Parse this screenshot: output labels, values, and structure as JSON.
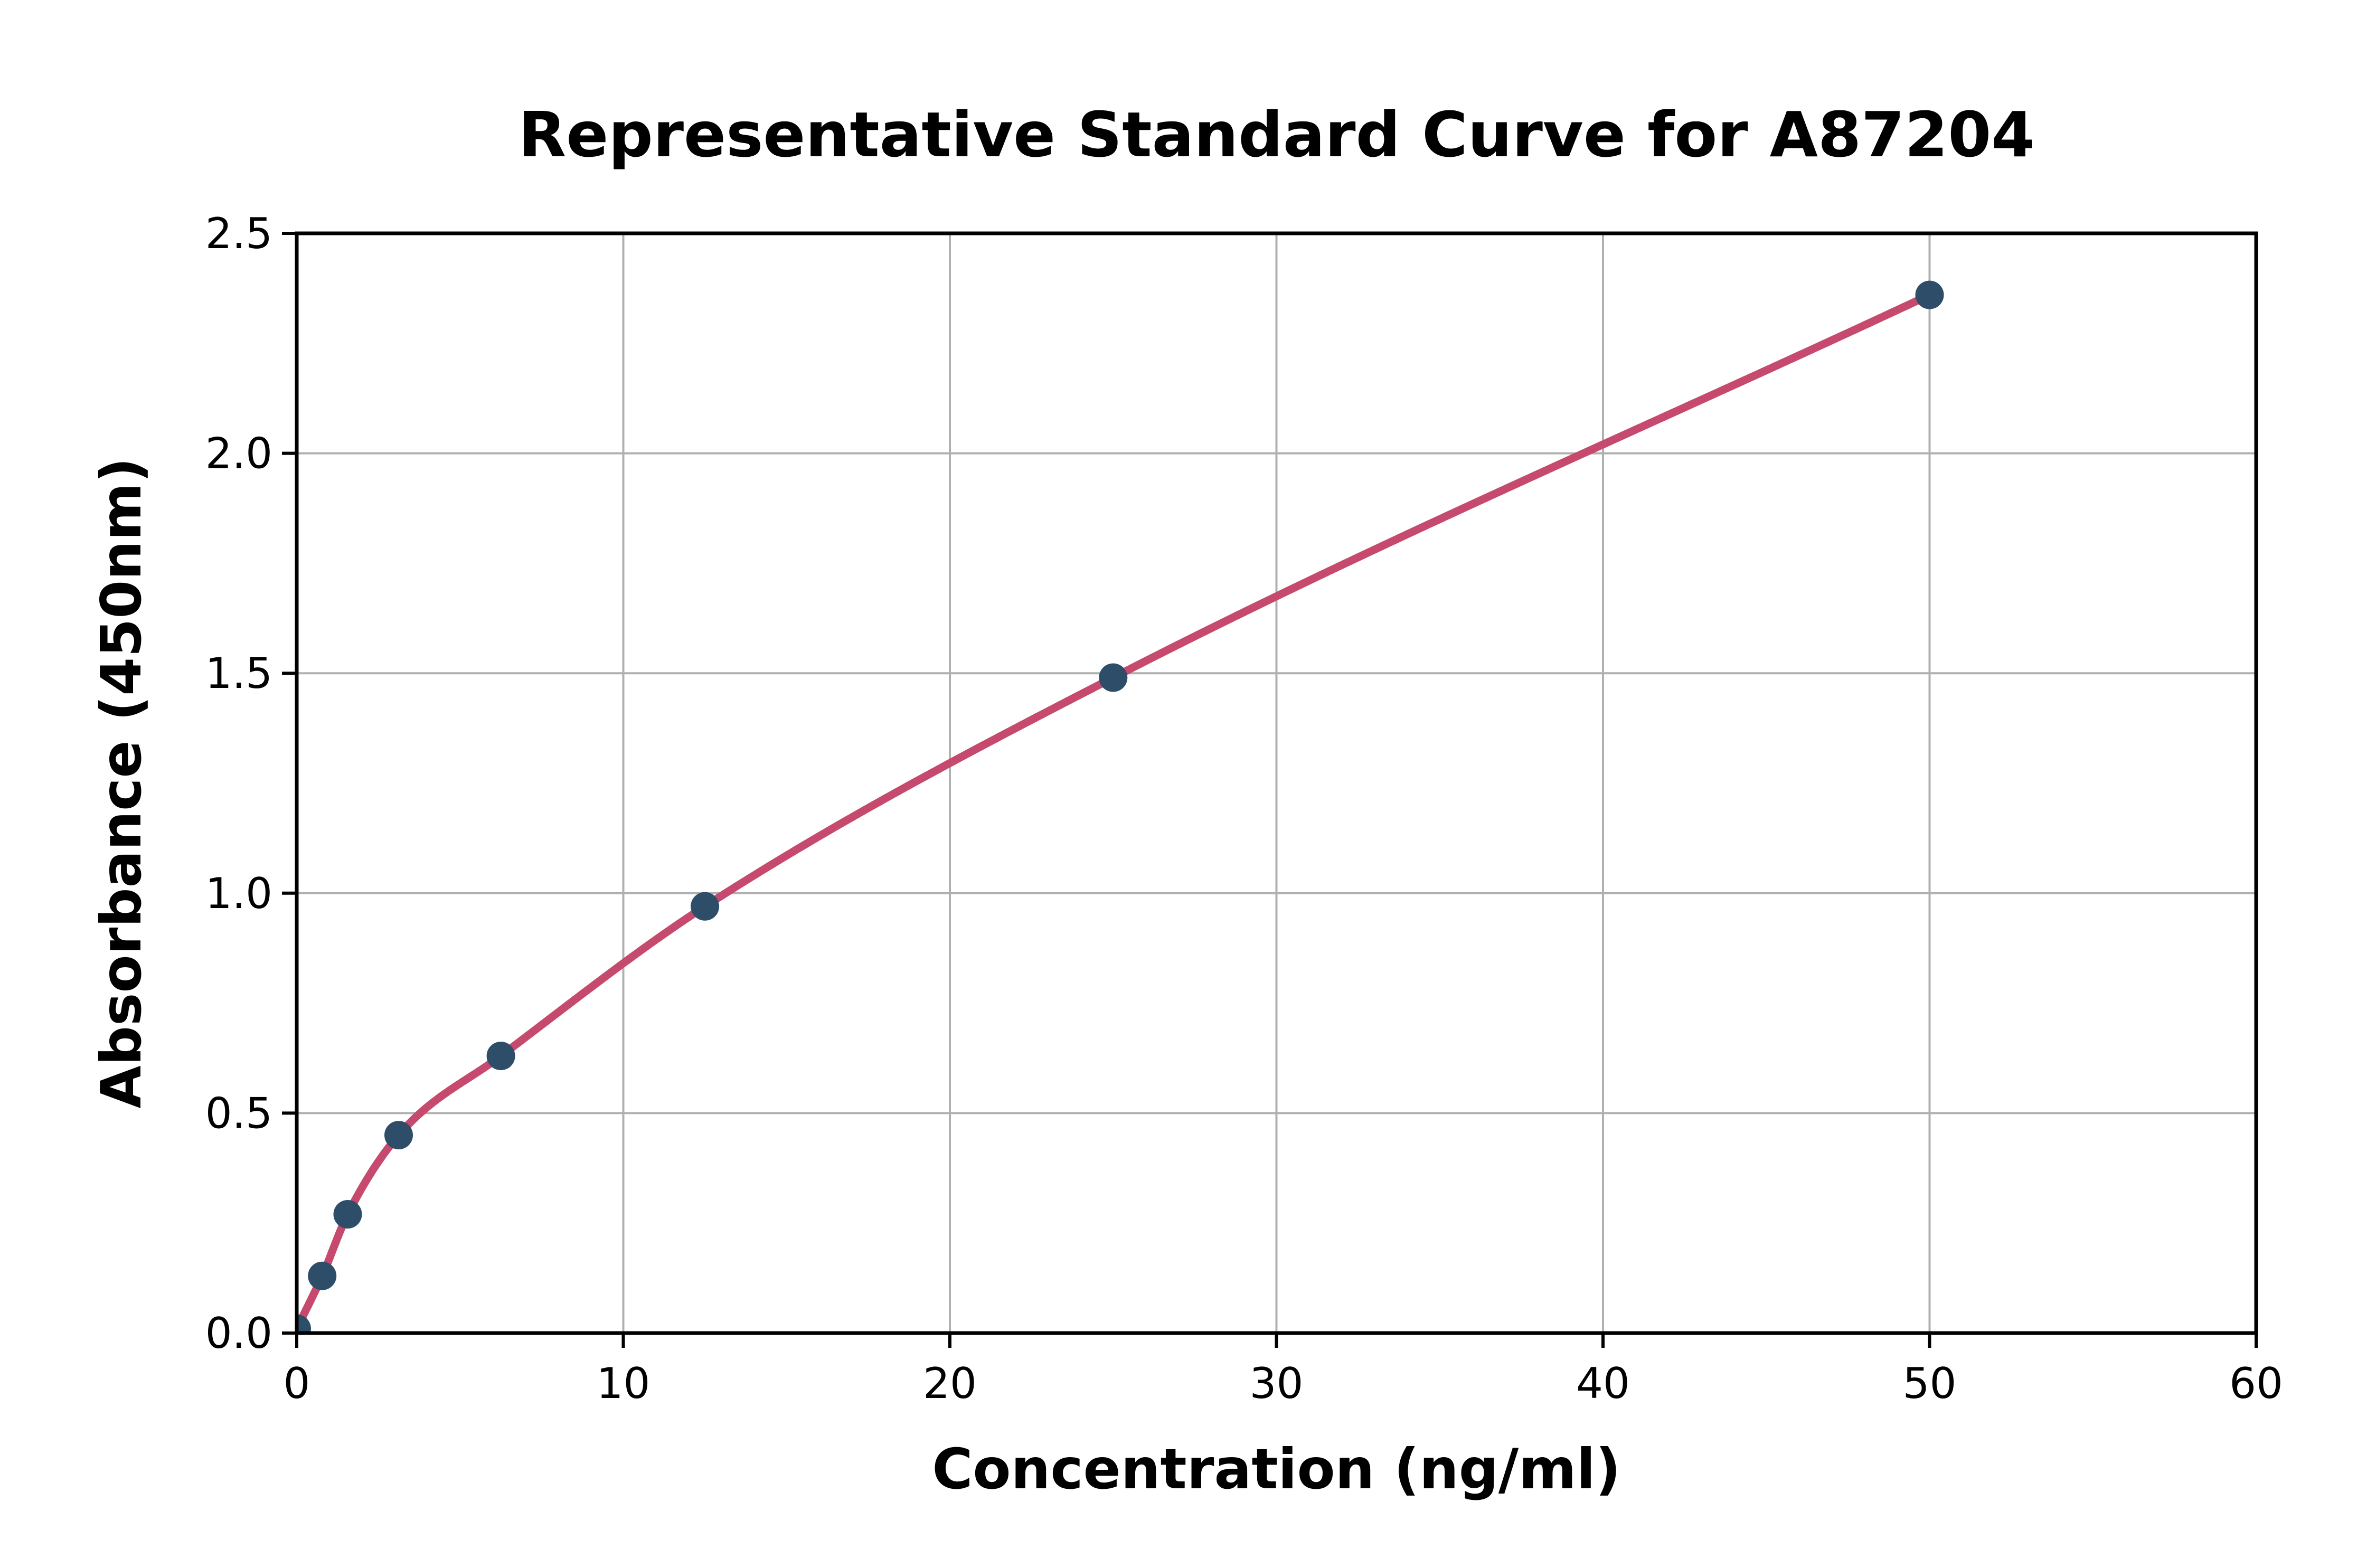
{
  "figure": {
    "background": "#ffffff"
  },
  "chart_data": {
    "type": "scatter",
    "title": "Representative Standard Curve for A87204",
    "xlabel": "Concentration (ng/ml)",
    "ylabel": "Absorbance (450nm)",
    "xlim": [
      0,
      60
    ],
    "ylim": [
      0,
      2.5
    ],
    "grid": true,
    "legend": "none",
    "x_ticks": [
      0,
      10,
      20,
      30,
      40,
      50,
      60
    ],
    "x_tick_labels": [
      "0",
      "10",
      "20",
      "30",
      "40",
      "50",
      "60"
    ],
    "y_ticks": [
      0,
      0.5,
      1,
      1.5,
      2,
      2.5
    ],
    "y_tick_labels": [
      "0.0",
      "0.5",
      "1.0",
      "1.5",
      "2.0",
      "2.5"
    ],
    "series": [
      {
        "name": "standard-points",
        "type": "scatter",
        "x": [
          0,
          0.78,
          1.56,
          3.12,
          6.25,
          12.5,
          25,
          50
        ],
        "y": [
          0.01,
          0.13,
          0.27,
          0.45,
          0.63,
          0.97,
          1.49,
          2.36
        ],
        "color": "#2d4d69"
      },
      {
        "name": "fit-curve",
        "type": "line",
        "derived_from": "standard-points",
        "color": "#c6496e"
      }
    ],
    "colors": {
      "grid": "#b0b0b0",
      "spine": "#000000",
      "tick": "#000000",
      "text": "#000000"
    }
  }
}
